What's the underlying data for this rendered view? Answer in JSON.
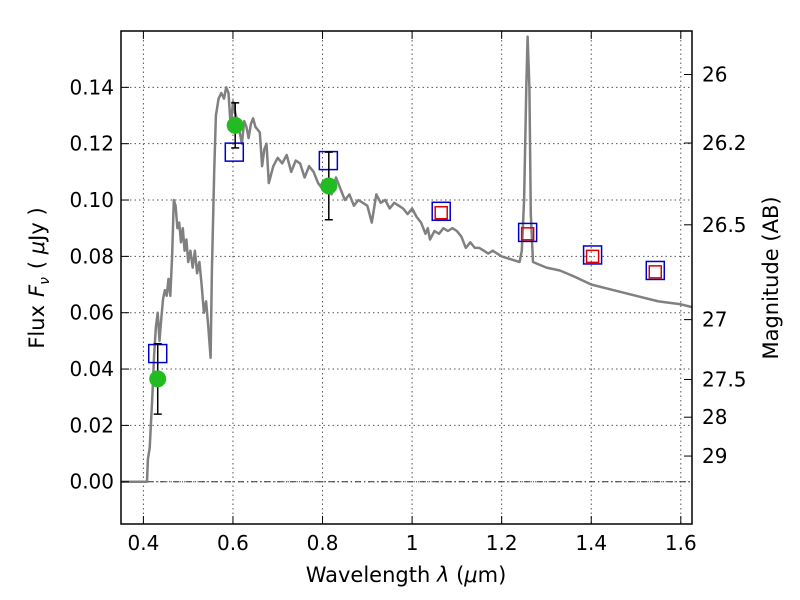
{
  "chart_data": {
    "type": "line",
    "xlabel": "Wavelength  λ (μm)",
    "ylabel": "Flux  F_ν  ( μJy )",
    "ylabel_parts": {
      "flux": "Flux",
      "symbol": "F",
      "subscript": "ν",
      "unit_open": "( ",
      "mu": "μ",
      "unit_rest": "Jy )"
    },
    "xlabel_parts": {
      "main": "Wavelength  ",
      "lambda": "λ",
      "unit_open": " (",
      "mu": "μ",
      "unit_rest": "m)"
    },
    "y2label": "Magnitude (AB)",
    "xlim": [
      0.35,
      1.625
    ],
    "ylim": [
      -0.015,
      0.16
    ],
    "grid": true,
    "x_ticks": [
      {
        "value": 0.4,
        "label": "0.4"
      },
      {
        "value": 0.6,
        "label": "0.6"
      },
      {
        "value": 0.8,
        "label": "0.8"
      },
      {
        "value": 1.0,
        "label": "1"
      },
      {
        "value": 1.2,
        "label": "1.2"
      },
      {
        "value": 1.4,
        "label": "1.4"
      },
      {
        "value": 1.6,
        "label": "1.6"
      }
    ],
    "y_ticks": [
      {
        "value": 0.0,
        "label": "0.00"
      },
      {
        "value": 0.02,
        "label": "0.02"
      },
      {
        "value": 0.04,
        "label": "0.04"
      },
      {
        "value": 0.06,
        "label": "0.06"
      },
      {
        "value": 0.08,
        "label": "0.08"
      },
      {
        "value": 0.1,
        "label": "0.10"
      },
      {
        "value": 0.12,
        "label": "0.12"
      },
      {
        "value": 0.14,
        "label": "0.14"
      }
    ],
    "mag_ticks": [
      {
        "value": 26,
        "label": "26"
      },
      {
        "value": 26.2,
        "label": "26.2"
      },
      {
        "value": 26.5,
        "label": "26.5"
      },
      {
        "value": 27,
        "label": "27"
      },
      {
        "value": 27.5,
        "label": "27.5"
      },
      {
        "value": 28,
        "label": "28"
      },
      {
        "value": 29,
        "label": "29"
      }
    ],
    "model_spectrum": {
      "color": "#808080",
      "points": [
        [
          0.35,
          0.0
        ],
        [
          0.408,
          0.0
        ],
        [
          0.41,
          0.008
        ],
        [
          0.414,
          0.012
        ],
        [
          0.42,
          0.03
        ],
        [
          0.424,
          0.045
        ],
        [
          0.428,
          0.055
        ],
        [
          0.432,
          0.06
        ],
        [
          0.436,
          0.05
        ],
        [
          0.44,
          0.058
        ],
        [
          0.444,
          0.065
        ],
        [
          0.448,
          0.068
        ],
        [
          0.452,
          0.066
        ],
        [
          0.456,
          0.072
        ],
        [
          0.46,
          0.066
        ],
        [
          0.464,
          0.08
        ],
        [
          0.468,
          0.1
        ],
        [
          0.472,
          0.098
        ],
        [
          0.476,
          0.09
        ],
        [
          0.48,
          0.092
        ],
        [
          0.484,
          0.085
        ],
        [
          0.488,
          0.09
        ],
        [
          0.492,
          0.082
        ],
        [
          0.496,
          0.086
        ],
        [
          0.5,
          0.078
        ],
        [
          0.505,
          0.082
        ],
        [
          0.51,
          0.076
        ],
        [
          0.515,
          0.082
        ],
        [
          0.52,
          0.074
        ],
        [
          0.525,
          0.078
        ],
        [
          0.53,
          0.07
        ],
        [
          0.535,
          0.06
        ],
        [
          0.54,
          0.064
        ],
        [
          0.545,
          0.055
        ],
        [
          0.55,
          0.044
        ],
        [
          0.553,
          0.075
        ],
        [
          0.558,
          0.11
        ],
        [
          0.562,
          0.13
        ],
        [
          0.568,
          0.136
        ],
        [
          0.574,
          0.138
        ],
        [
          0.58,
          0.136
        ],
        [
          0.585,
          0.14
        ],
        [
          0.59,
          0.138
        ],
        [
          0.595,
          0.126
        ],
        [
          0.6,
          0.135
        ],
        [
          0.605,
          0.131
        ],
        [
          0.61,
          0.128
        ],
        [
          0.615,
          0.124
        ],
        [
          0.62,
          0.12
        ],
        [
          0.625,
          0.128
        ],
        [
          0.63,
          0.126
        ],
        [
          0.635,
          0.122
        ],
        [
          0.64,
          0.127
        ],
        [
          0.645,
          0.129
        ],
        [
          0.65,
          0.126
        ],
        [
          0.66,
          0.124
        ],
        [
          0.665,
          0.112
        ],
        [
          0.67,
          0.118
        ],
        [
          0.675,
          0.12
        ],
        [
          0.68,
          0.106
        ],
        [
          0.69,
          0.112
        ],
        [
          0.7,
          0.115
        ],
        [
          0.71,
          0.113
        ],
        [
          0.72,
          0.116
        ],
        [
          0.73,
          0.11
        ],
        [
          0.74,
          0.114
        ],
        [
          0.75,
          0.113
        ],
        [
          0.76,
          0.108
        ],
        [
          0.77,
          0.112
        ],
        [
          0.78,
          0.11
        ],
        [
          0.79,
          0.106
        ],
        [
          0.8,
          0.104
        ],
        [
          0.81,
          0.107
        ],
        [
          0.82,
          0.102
        ],
        [
          0.83,
          0.108
        ],
        [
          0.84,
          0.104
        ],
        [
          0.85,
          0.1
        ],
        [
          0.86,
          0.102
        ],
        [
          0.87,
          0.098
        ],
        [
          0.88,
          0.1
        ],
        [
          0.89,
          0.099
        ],
        [
          0.9,
          0.098
        ],
        [
          0.91,
          0.092
        ],
        [
          0.92,
          0.102
        ],
        [
          0.93,
          0.099
        ],
        [
          0.94,
          0.1
        ],
        [
          0.95,
          0.097
        ],
        [
          0.96,
          0.099
        ],
        [
          0.97,
          0.098
        ],
        [
          0.98,
          0.097
        ],
        [
          0.99,
          0.095
        ],
        [
          1.0,
          0.097
        ],
        [
          1.01,
          0.094
        ],
        [
          1.02,
          0.092
        ],
        [
          1.03,
          0.088
        ],
        [
          1.035,
          0.09
        ],
        [
          1.04,
          0.086
        ],
        [
          1.05,
          0.089
        ],
        [
          1.06,
          0.088
        ],
        [
          1.07,
          0.09
        ],
        [
          1.08,
          0.089
        ],
        [
          1.09,
          0.09
        ],
        [
          1.1,
          0.089
        ],
        [
          1.11,
          0.087
        ],
        [
          1.12,
          0.083
        ],
        [
          1.13,
          0.085
        ],
        [
          1.14,
          0.083
        ],
        [
          1.15,
          0.083
        ],
        [
          1.16,
          0.082
        ],
        [
          1.17,
          0.081
        ],
        [
          1.18,
          0.082
        ],
        [
          1.19,
          0.081
        ],
        [
          1.2,
          0.08
        ],
        [
          1.22,
          0.079
        ],
        [
          1.24,
          0.078
        ],
        [
          1.245,
          0.082
        ],
        [
          1.25,
          0.1
        ],
        [
          1.255,
          0.14
        ],
        [
          1.258,
          0.158
        ],
        [
          1.262,
          0.14
        ],
        [
          1.265,
          0.095
        ],
        [
          1.27,
          0.078
        ],
        [
          1.3,
          0.076
        ],
        [
          1.33,
          0.075
        ],
        [
          1.36,
          0.073
        ],
        [
          1.4,
          0.07
        ],
        [
          1.45,
          0.068
        ],
        [
          1.5,
          0.066
        ],
        [
          1.55,
          0.064
        ],
        [
          1.6,
          0.063
        ],
        [
          1.625,
          0.062
        ]
      ]
    },
    "observed_points": {
      "color": "#22bb22",
      "points": [
        {
          "x": 0.432,
          "y": 0.0365,
          "err": 0.0125
        },
        {
          "x": 0.605,
          "y": 0.1265,
          "err": 0.008
        },
        {
          "x": 0.814,
          "y": 0.105,
          "err": 0.012
        }
      ]
    },
    "model_photometry_blue": {
      "color": "#0000cc",
      "points": [
        {
          "x": 0.432,
          "y": 0.0455
        },
        {
          "x": 0.603,
          "y": 0.117
        },
        {
          "x": 0.813,
          "y": 0.114
        },
        {
          "x": 1.065,
          "y": 0.096
        },
        {
          "x": 1.258,
          "y": 0.0885
        },
        {
          "x": 1.403,
          "y": 0.0805
        },
        {
          "x": 1.543,
          "y": 0.075
        }
      ]
    },
    "model_photometry_red": {
      "color": "#dd0000",
      "points": [
        {
          "x": 1.065,
          "y": 0.0955
        },
        {
          "x": 1.258,
          "y": 0.088
        },
        {
          "x": 1.403,
          "y": 0.08
        },
        {
          "x": 1.543,
          "y": 0.0745
        }
      ]
    }
  }
}
